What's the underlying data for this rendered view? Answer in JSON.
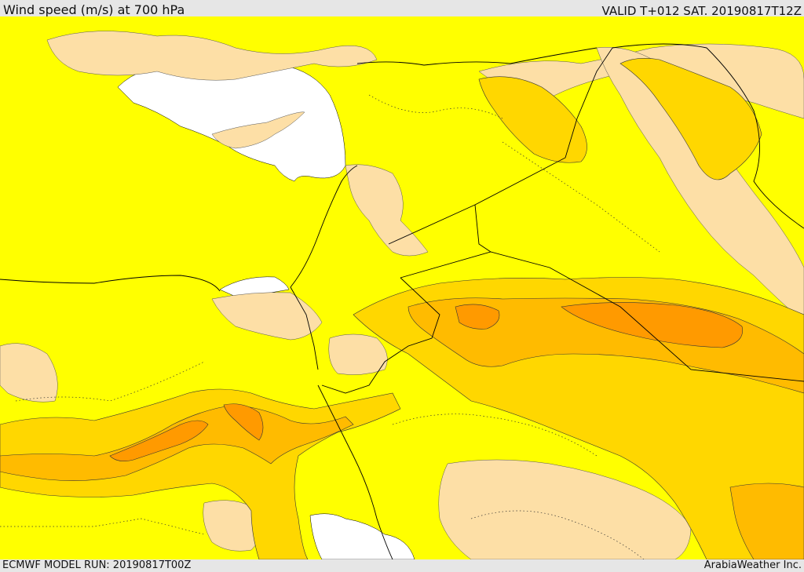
{
  "header": {
    "title": "Wind speed (m/s) at 700 hPa",
    "valid_time": "VALID T+012 SAT. 20190817T12Z"
  },
  "footer": {
    "model_run": "ECMWF MODEL RUN: 20190817T00Z",
    "credit": "ArabiaWeather Inc."
  },
  "map": {
    "colors": {
      "calm_land_tan": "#fddfa6",
      "low": "#ffff00",
      "moderate": "#ffd700",
      "fresh": "#ffbb00",
      "strong": "#ff9a00",
      "sea_white": "#ffffff",
      "borders": "#000000"
    }
  }
}
